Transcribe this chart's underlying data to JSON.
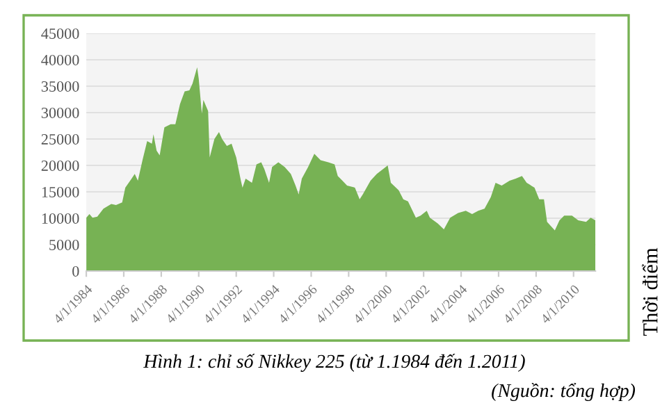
{
  "chart_data": {
    "type": "area",
    "title": "Hình 1: chỉ số Nikkey 225 (từ 1.1984 đến 1.2011)",
    "annotations": [
      "Thời điểm",
      "(Nguồn: tổng hợp)"
    ],
    "x": [
      "1984-04",
      "1984-06",
      "1984-08",
      "1984-11",
      "1985-03",
      "1985-08",
      "1985-11",
      "1986-03",
      "1986-05",
      "1986-09",
      "1986-11",
      "1987-01",
      "1987-04",
      "1987-07",
      "1987-10",
      "1987-11",
      "1988-01",
      "1988-03",
      "1988-06",
      "1988-10",
      "1989-01",
      "1989-04",
      "1989-07",
      "1989-10",
      "1989-12",
      "1990-03",
      "1990-04",
      "1990-06",
      "1990-07",
      "1990-10",
      "1990-11",
      "1991-02",
      "1991-05",
      "1991-07",
      "1991-10",
      "1992-01",
      "1992-04",
      "1992-07",
      "1992-08",
      "1992-10",
      "1993-02",
      "1993-05",
      "1993-08",
      "1993-10",
      "1994-01",
      "1994-03",
      "1994-07",
      "1994-11",
      "1995-03",
      "1995-06",
      "1995-08",
      "1995-10",
      "1996-02",
      "1996-06",
      "1996-10",
      "1997-03",
      "1997-07",
      "1997-09",
      "1997-12",
      "1998-03",
      "1998-08",
      "1998-11",
      "1999-01",
      "1999-06",
      "1999-10",
      "2000-02",
      "2000-05",
      "2000-07",
      "2000-12",
      "2001-03",
      "2001-06",
      "2001-11",
      "2002-02",
      "2002-06",
      "2002-08",
      "2003-01",
      "2003-05",
      "2003-09",
      "2004-02",
      "2004-07",
      "2004-11",
      "2005-03",
      "2005-07",
      "2005-11",
      "2006-02",
      "2006-06",
      "2006-11",
      "2007-03",
      "2007-07",
      "2007-10",
      "2008-03",
      "2008-06",
      "2008-09",
      "2008-11",
      "2009-04",
      "2009-07",
      "2009-10",
      "2010-03",
      "2010-07",
      "2010-12",
      "2011-03",
      "2011-06"
    ],
    "values": [
      10100,
      10800,
      10100,
      10300,
      11800,
      12700,
      12500,
      13000,
      15800,
      17500,
      18400,
      17100,
      21000,
      24600,
      24100,
      25900,
      22800,
      21900,
      27200,
      27800,
      27800,
      31600,
      34000,
      34200,
      35500,
      38600,
      36400,
      29800,
      32400,
      30300,
      21500,
      25000,
      26300,
      25000,
      23700,
      24100,
      21500,
      17100,
      15800,
      17500,
      16700,
      20200,
      20600,
      19300,
      16700,
      19700,
      20600,
      19700,
      18400,
      16200,
      14500,
      17500,
      19700,
      22200,
      21000,
      20600,
      20200,
      18000,
      17100,
      16200,
      15800,
      13600,
      14500,
      17100,
      18400,
      19300,
      20000,
      16700,
      15300,
      13600,
      13200,
      10100,
      10500,
      11400,
      10100,
      9000,
      7900,
      10100,
      11000,
      11400,
      10800,
      11400,
      11800,
      14000,
      16700,
      16200,
      17100,
      17500,
      18000,
      16700,
      15800,
      13600,
      13600,
      9300,
      7700,
      9600,
      10500,
      10500,
      9600,
      9300,
      10100,
      9600
    ],
    "color": "#77b254",
    "xlim": [
      "1984-04",
      "2011-06"
    ],
    "xticks": [
      {
        "value": "1984-04-01",
        "label": "4/1/1984"
      },
      {
        "value": "1986-04-01",
        "label": "4/1/1986"
      },
      {
        "value": "1988-04-01",
        "label": "4/1/1988"
      },
      {
        "value": "1990-04-01",
        "label": "4/1/1990"
      },
      {
        "value": "1992-04-01",
        "label": "4/1/1992"
      },
      {
        "value": "1994-04-01",
        "label": "4/1/1994"
      },
      {
        "value": "1996-04-01",
        "label": "4/1/1996"
      },
      {
        "value": "1998-04-01",
        "label": "4/1/1998"
      },
      {
        "value": "2000-04-01",
        "label": "4/1/2000"
      },
      {
        "value": "2002-04-01",
        "label": "4/1/2002"
      },
      {
        "value": "2004-04-01",
        "label": "4/1/2004"
      },
      {
        "value": "2006-04-01",
        "label": "4/1/2006"
      },
      {
        "value": "2008-04-01",
        "label": "4/1/2008"
      },
      {
        "value": "2010-04-01",
        "label": "4/1/2010"
      }
    ],
    "ylim": [
      0,
      45000
    ],
    "yticks": [
      0,
      5000,
      10000,
      15000,
      20000,
      25000,
      30000,
      35000,
      40000,
      45000
    ],
    "grid": "y",
    "legend": false
  }
}
